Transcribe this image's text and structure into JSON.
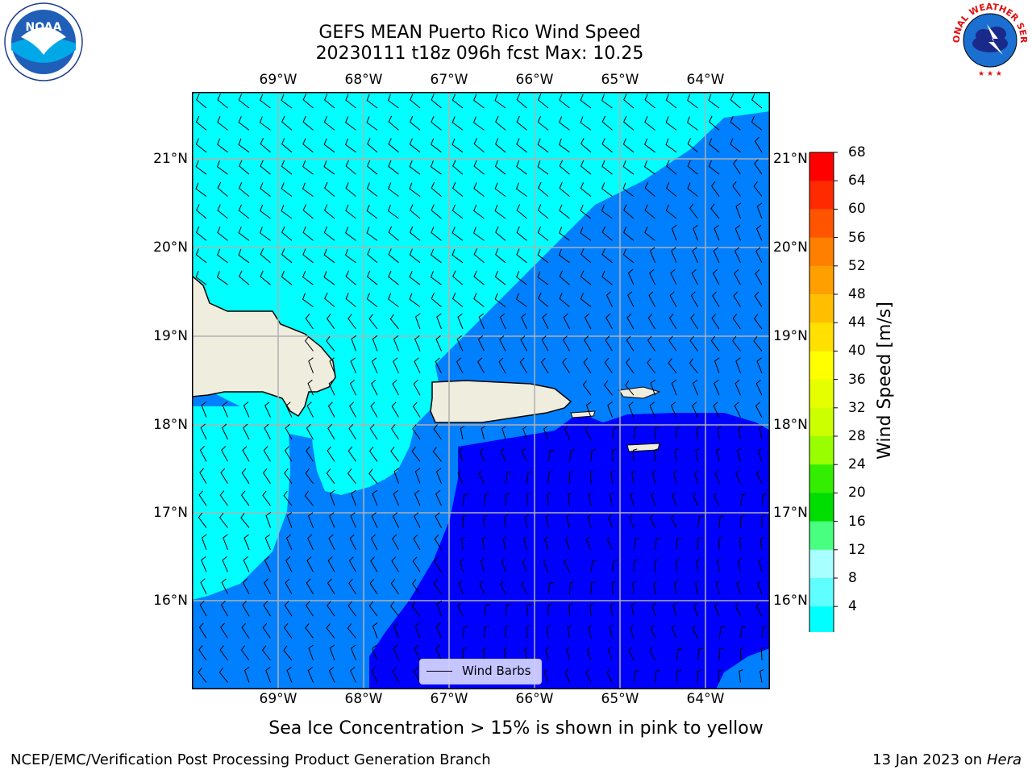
{
  "title": {
    "line1": "GEFS MEAN Puerto Rico Wind Speed",
    "line2": "20230111 t18z 096h fcst   Max: 10.25"
  },
  "map": {
    "lon_labels": [
      "69°W",
      "68°W",
      "67°W",
      "66°W",
      "65°W",
      "64°W"
    ],
    "lat_labels": [
      "21°N",
      "20°N",
      "19°N",
      "18°N",
      "17°N",
      "16°N"
    ],
    "colors": {
      "land": "#efedde",
      "band_4_8": "#0080ff",
      "band_0_4": "#0000ff",
      "band_8_12": "#00ffff",
      "gridline": "#b0b0b0"
    }
  },
  "legend": {
    "label": "Wind Barbs"
  },
  "colorbar": {
    "label": "Wind Speed [m/s]",
    "ticks": [
      "68",
      "64",
      "60",
      "56",
      "52",
      "48",
      "44",
      "40",
      "36",
      "32",
      "28",
      "24",
      "20",
      "16",
      "12",
      "8",
      "4"
    ],
    "colors": [
      "#ff0000",
      "#ff2a00",
      "#ff5400",
      "#ff8000",
      "#ff9f00",
      "#ffbf00",
      "#ffe000",
      "#ffff00",
      "#e6ff00",
      "#ccff00",
      "#99ff00",
      "#33ee00",
      "#00dd00",
      "#48ff80",
      "#a8ffff",
      "#60ffff",
      "#00ffff",
      "#0080ff"
    ],
    "under_color": "#0000ff"
  },
  "note": "Sea Ice Concentration > 15% is shown in pink to yellow",
  "footer": {
    "left": "NCEP/EMC/Verification Post Processing Product Generation Branch",
    "right_date": "13 Jan 2023 on ",
    "right_host": "Hera"
  },
  "logos": {
    "noaa_text": "NOAA",
    "nws_text": "NATIONAL WEATHER SERVICE"
  }
}
